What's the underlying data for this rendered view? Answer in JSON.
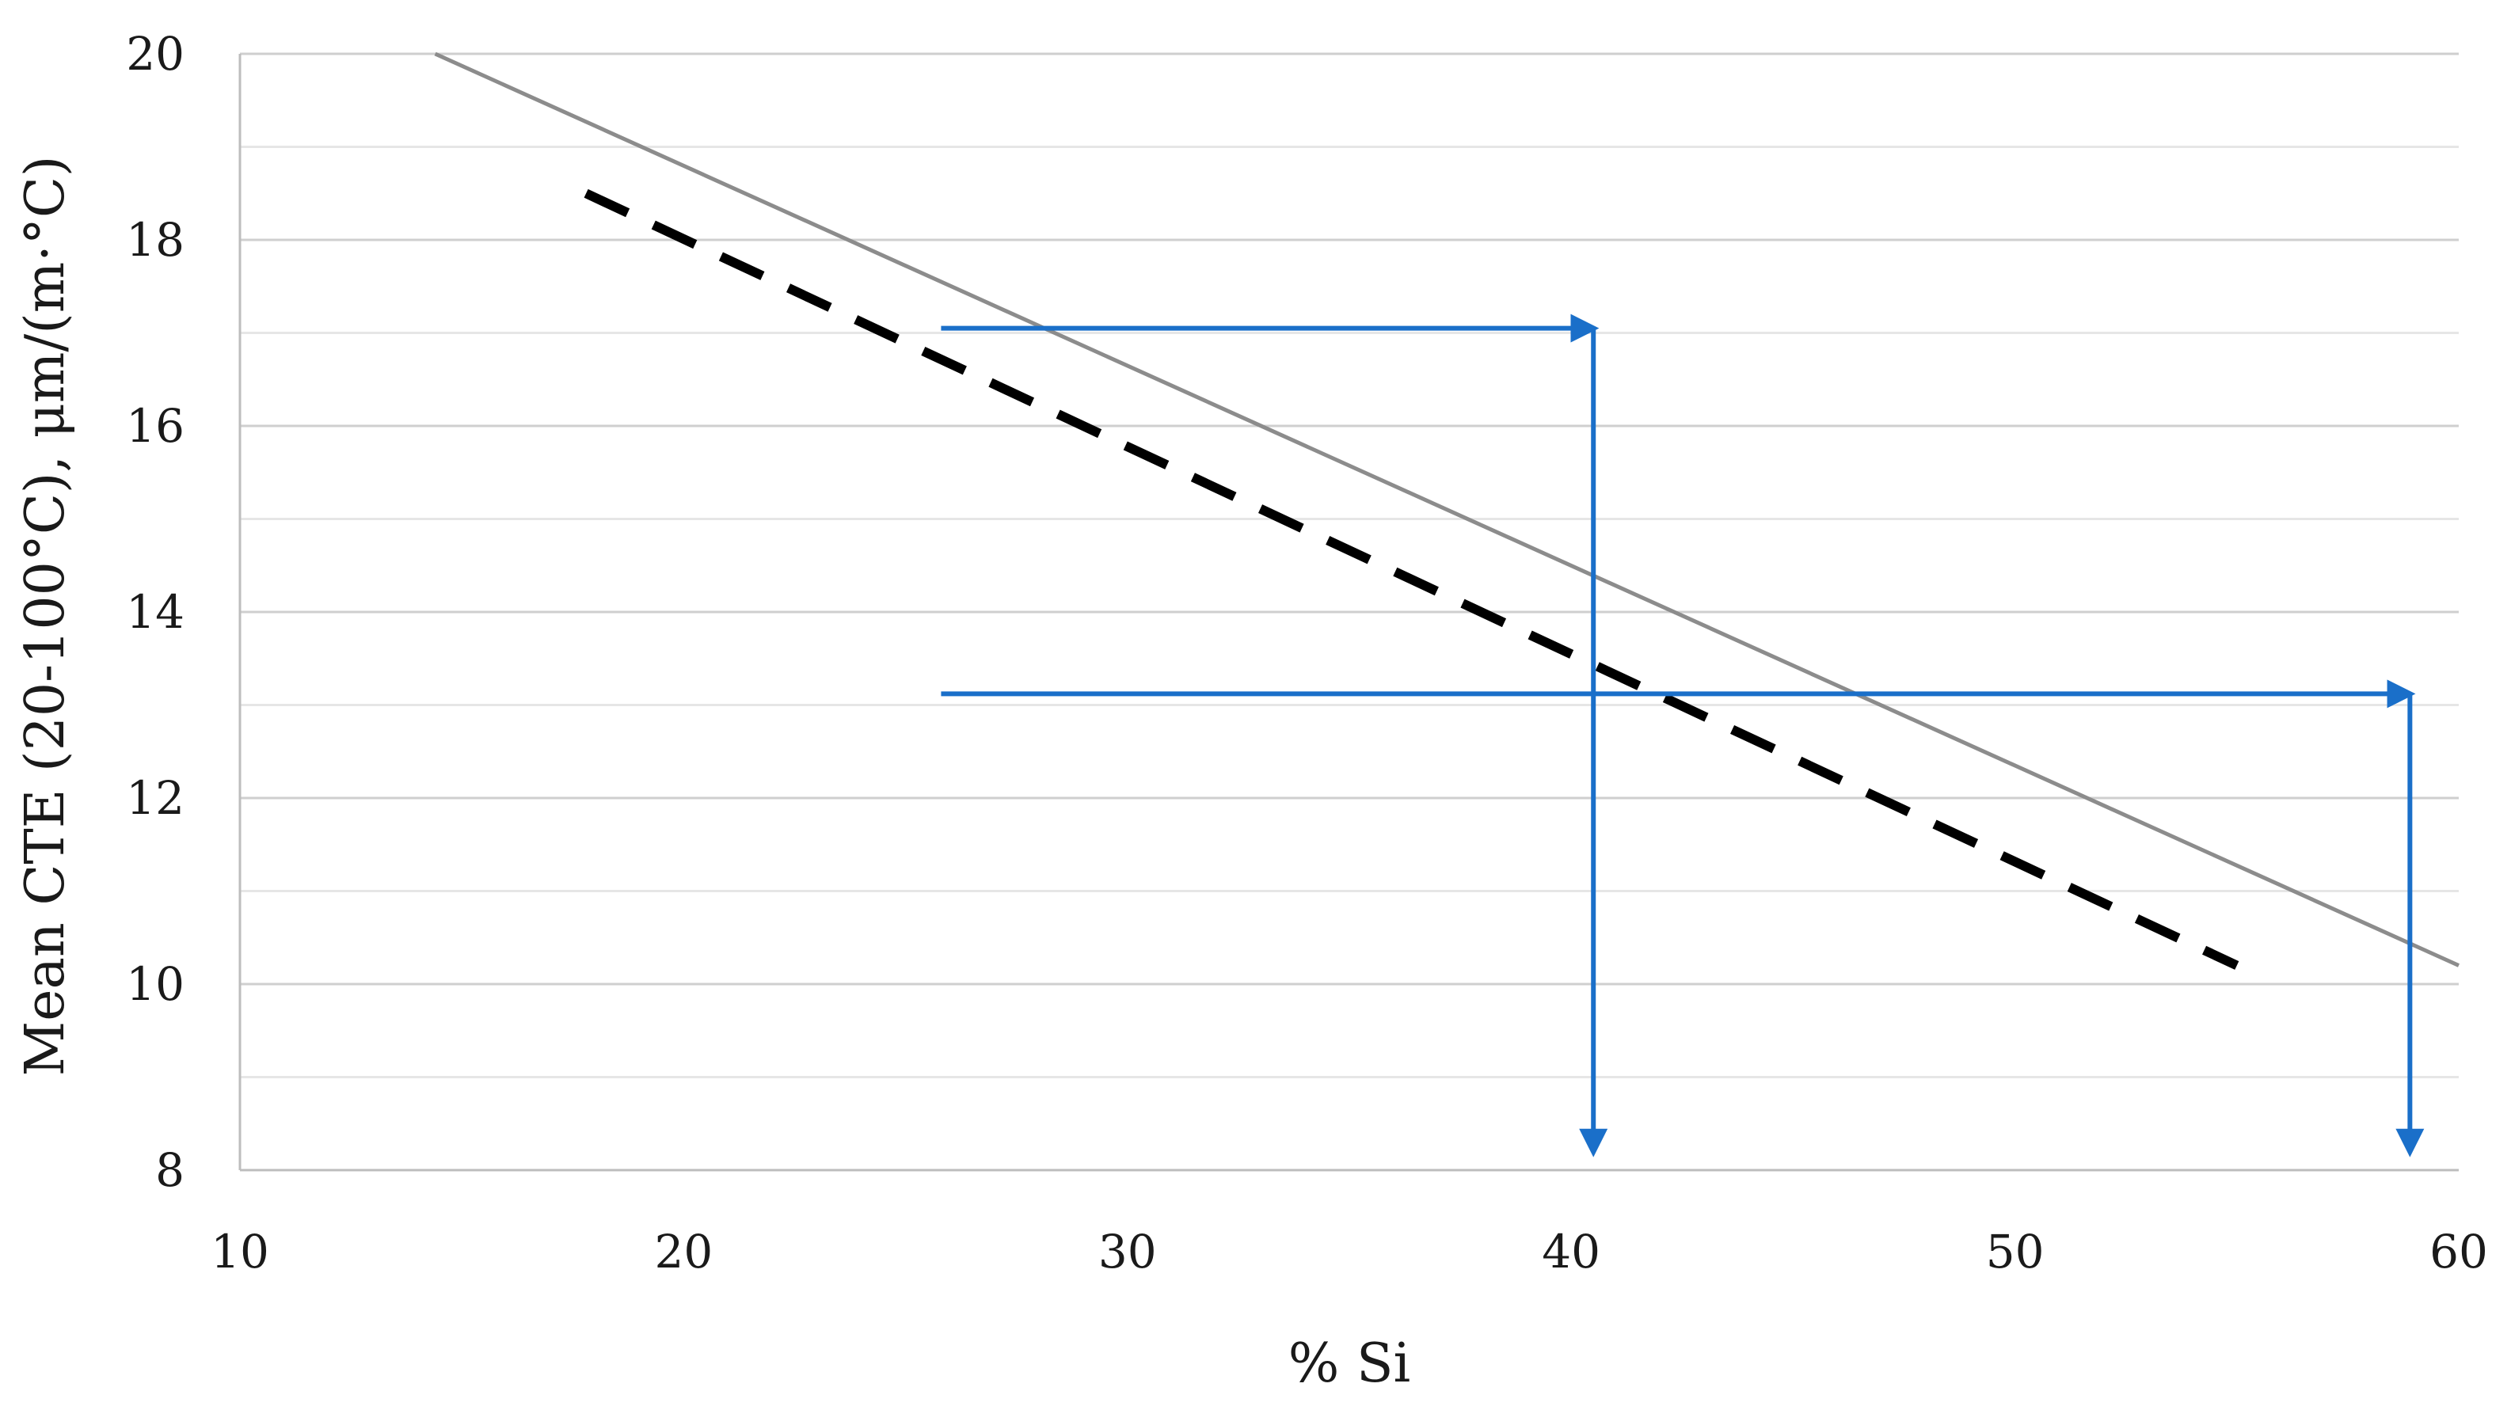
{
  "chart_data": {
    "type": "line",
    "title": "",
    "xlabel": "% Si",
    "ylabel": "Mean CTE (20-100°C), μm/(m·°C)",
    "xlim": [
      10,
      60
    ],
    "ylim": [
      8,
      20
    ],
    "x_ticks": [
      10,
      20,
      30,
      40,
      50,
      60
    ],
    "y_ticks": [
      8,
      10,
      12,
      14,
      16,
      18,
      20
    ],
    "grid": true,
    "legend": "none",
    "series": [
      {
        "style": "solid",
        "color": "#8c8c8c",
        "x": [
          14.4,
          60
        ],
        "y": [
          20,
          10.2
        ]
      },
      {
        "style": "dashed",
        "color": "#000000",
        "x": [
          17.8,
          55
        ],
        "y": [
          18.5,
          10.2
        ]
      }
    ],
    "annotations": [
      {
        "type": "arrow-path",
        "color": "#1a6fc9",
        "points": [
          [
            25.8,
            17.05
          ],
          [
            40.5,
            17.05
          ],
          [
            40.5,
            8.2
          ]
        ]
      },
      {
        "type": "arrow-path",
        "color": "#1a6fc9",
        "points": [
          [
            25.8,
            13.12
          ],
          [
            58.9,
            13.12
          ],
          [
            58.9,
            8.2
          ]
        ]
      }
    ]
  }
}
